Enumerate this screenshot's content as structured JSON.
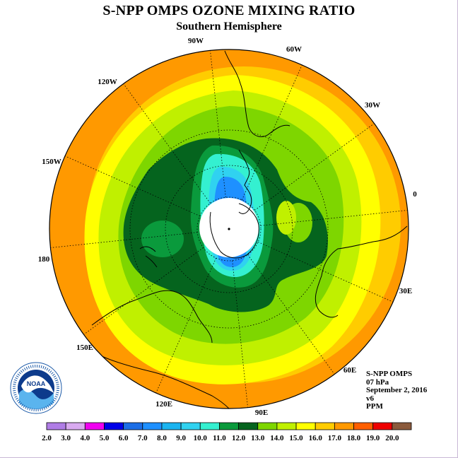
{
  "title": "S-NPP OMPS OZONE MIXING RATIO",
  "subtitle": "Southern Hemisphere",
  "longitude_labels": [
    "90W",
    "60W",
    "30W",
    "0",
    "30E",
    "60E",
    "90E",
    "120E",
    "150E",
    "180",
    "150W",
    "120W"
  ],
  "info": {
    "instrument": "S-NPP OMPS",
    "level": "07 hPa",
    "date": "September 2, 2016",
    "version": "v6",
    "units": "PPM"
  },
  "logo": {
    "text": "NOAA",
    "ring_text": "NATIONAL OCEANIC AND ATMOSPHERIC ADMINISTRATION · U.S. DEPARTMENT OF COMMERCE"
  },
  "colorbar": {
    "labels": [
      "2.0",
      "3.0",
      "4.0",
      "5.0",
      "6.0",
      "7.0",
      "8.0",
      "9.0",
      "10.0",
      "11.0",
      "12.0",
      "13.0",
      "14.0",
      "15.0",
      "16.0",
      "17.0",
      "18.0",
      "19.0",
      "20.0"
    ],
    "colors": [
      "#b07de6",
      "#d9aaf0",
      "#f000f0",
      "#0000e8",
      "#1c6ee6",
      "#1e90ff",
      "#1ab4f0",
      "#30d2f0",
      "#34f0d0",
      "#0a9a3c",
      "#05641e",
      "#7ed600",
      "#c0f000",
      "#ffff00",
      "#ffcc00",
      "#ff9900",
      "#ff5f00",
      "#ee0000",
      "#8b5a3c"
    ]
  },
  "map_colors": {
    "ppm_15_16": "#ffcc00",
    "ppm_16_17": "#ff9900",
    "ppm_14_15": "#ffff00",
    "ppm_13_14": "#c0f000",
    "ppm_12_13": "#7ed600",
    "ppm_11_12": "#05641e",
    "ppm_10_11": "#0a9a3c",
    "ppm_9_10": "#34f0d0",
    "ppm_8_9": "#30d2f0",
    "ppm_7_8": "#1e90ff",
    "no_data": "#ffffff"
  }
}
